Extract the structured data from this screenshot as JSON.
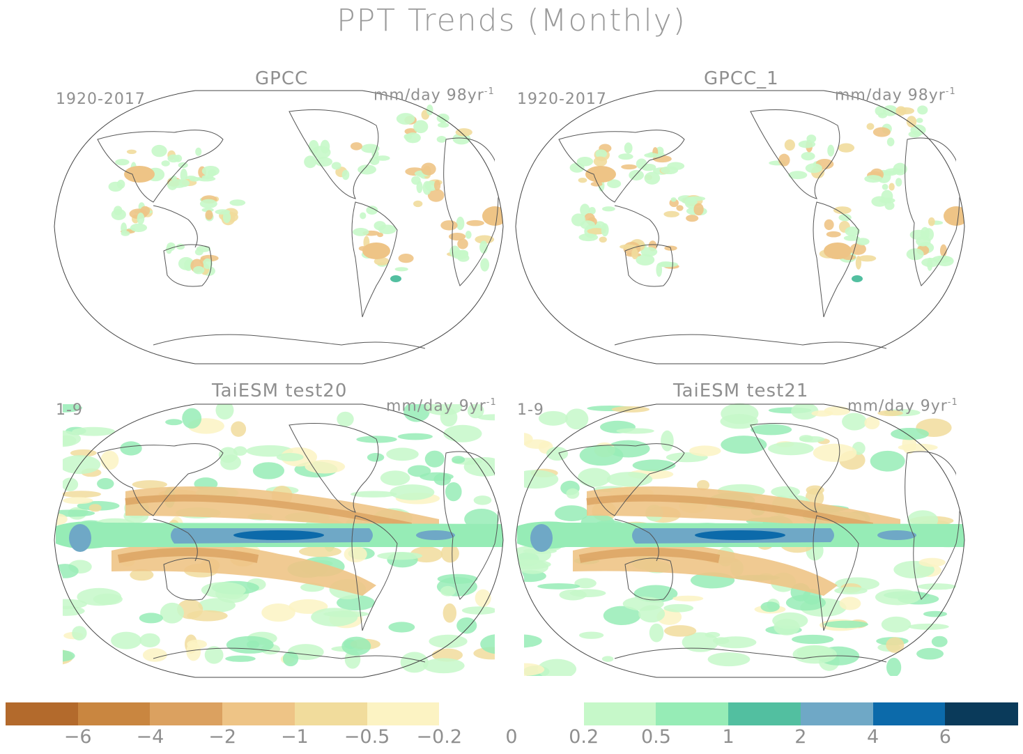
{
  "figure": {
    "title": "PPT Trends (Monthly)"
  },
  "panels": [
    {
      "title": "GPCC",
      "period": "1920-2017",
      "units": "mm/day 98yr",
      "units_sup": "-1",
      "kind": "obs"
    },
    {
      "title": "GPCC_1",
      "period": "1920-2017",
      "units": "mm/day 98yr",
      "units_sup": "-1",
      "kind": "obs"
    },
    {
      "title": "TaiESM test20",
      "period": "1-9",
      "units": "mm/day 9yr",
      "units_sup": "-1",
      "kind": "model"
    },
    {
      "title": "TaiESM test21",
      "period": "1-9",
      "units": "mm/day 9yr",
      "units_sup": "-1",
      "kind": "model"
    }
  ],
  "colorbar": {
    "colors": [
      "#b36a2c",
      "#c98640",
      "#dba160",
      "#eec486",
      "#f1dc9c",
      "#fcf3c3",
      "#ffffff",
      "#ffffff",
      "#c6f8c9",
      "#96ecb6",
      "#52bfa0",
      "#6fa8c6",
      "#0c6aaa",
      "#0a3a5a"
    ],
    "labels": [
      "-6",
      "-4",
      "-2",
      "-1",
      "-0.5",
      "-0.2",
      "0",
      "0.2",
      "0.5",
      "1",
      "2",
      "4",
      "6"
    ]
  }
}
